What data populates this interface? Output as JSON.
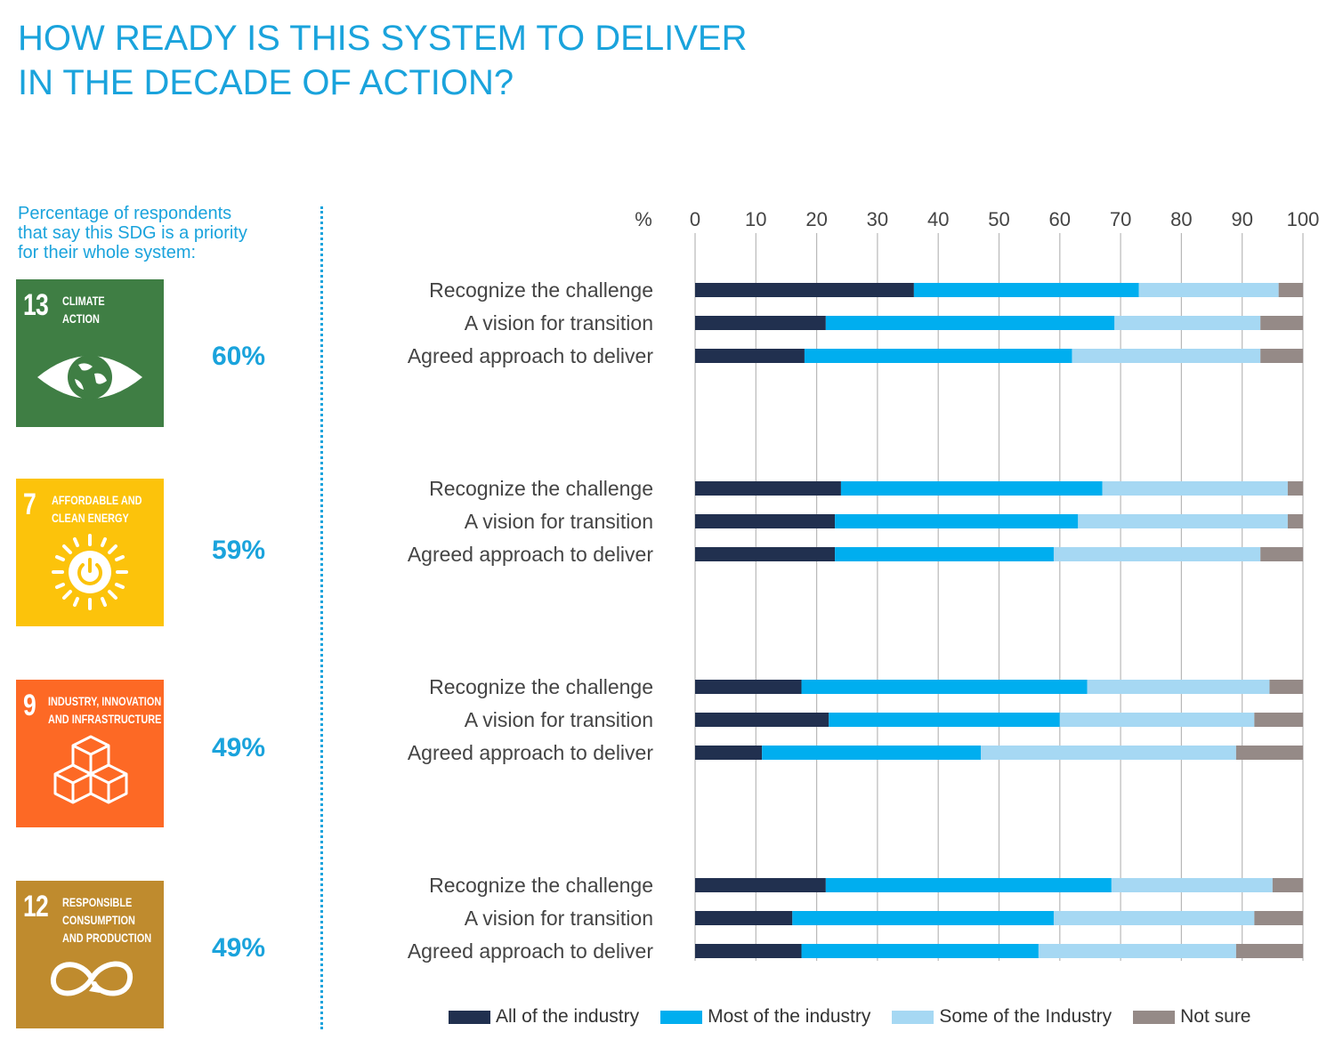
{
  "title_lines": [
    "HOW READY IS THIS SYSTEM TO DELIVER",
    "IN THE DECADE OF ACTION?"
  ],
  "intro_lines": [
    "Percentage of respondents",
    "that say this SDG is a priority",
    "for their whole system:"
  ],
  "colors": {
    "accent": "#1aa3dc",
    "all": "#21304f",
    "most": "#00aeef",
    "some": "#a6d8f3",
    "notsure": "#958a87",
    "grid": "#b8b8b8"
  },
  "sdgs": [
    {
      "number": "13",
      "name_lines": [
        "CLIMATE",
        "ACTION"
      ],
      "color": "#3f7e44",
      "icon": "eye-globe-icon",
      "priority": "60%"
    },
    {
      "number": "7",
      "name_lines": [
        "AFFORDABLE AND",
        "CLEAN ENERGY"
      ],
      "color": "#fcc30b",
      "icon": "sun-power-icon",
      "priority": "59%"
    },
    {
      "number": "9",
      "name_lines": [
        "INDUSTRY, INNOVATION",
        "AND INFRASTRUCTURE"
      ],
      "color": "#fd6925",
      "icon": "stacked-cubes-icon",
      "priority": "49%"
    },
    {
      "number": "12",
      "name_lines": [
        "RESPONSIBLE",
        "CONSUMPTION",
        "AND PRODUCTION"
      ],
      "color": "#bf8b2e",
      "icon": "infinity-loop-icon",
      "priority": "49%"
    }
  ],
  "chart_data": {
    "type": "bar",
    "orientation": "horizontal",
    "stacked": true,
    "xlabel": "%",
    "xlim": [
      0,
      100
    ],
    "xticks": [
      0,
      10,
      20,
      30,
      40,
      50,
      60,
      70,
      80,
      90,
      100
    ],
    "grid": true,
    "legend_position": "bottom-right",
    "series_names": [
      "All of the industry",
      "Most of the industry",
      "Some of the Industry",
      "Not sure"
    ],
    "groups": [
      {
        "sdg": "13 Climate Action",
        "rows": [
          {
            "label": "Recognize the challenge",
            "values": [
              36,
              37,
              23,
              4
            ]
          },
          {
            "label": "A vision for transition",
            "values": [
              21.5,
              47.5,
              24,
              7
            ]
          },
          {
            "label": "Agreed approach to deliver",
            "values": [
              18,
              44,
              31,
              7
            ]
          }
        ]
      },
      {
        "sdg": "7 Affordable and Clean Energy",
        "rows": [
          {
            "label": "Recognize the challenge",
            "values": [
              24,
              43,
              30.5,
              2.5
            ]
          },
          {
            "label": "A vision for transition",
            "values": [
              23,
              40,
              34.5,
              2.5
            ]
          },
          {
            "label": "Agreed approach to deliver",
            "values": [
              23,
              36,
              34,
              7
            ]
          }
        ]
      },
      {
        "sdg": "9 Industry, Innovation and Infrastructure",
        "rows": [
          {
            "label": "Recognize the challenge",
            "values": [
              17.5,
              47,
              30,
              5.5
            ]
          },
          {
            "label": "A vision for transition",
            "values": [
              22,
              38,
              32,
              8
            ]
          },
          {
            "label": "Agreed approach to deliver",
            "values": [
              11,
              36,
              42,
              11
            ]
          }
        ]
      },
      {
        "sdg": "12 Responsible Consumption and Production",
        "rows": [
          {
            "label": "Recognize the challenge",
            "values": [
              21.5,
              47,
              26.5,
              5
            ]
          },
          {
            "label": "A vision for transition",
            "values": [
              16,
              43,
              33,
              8
            ]
          },
          {
            "label": "Agreed approach to deliver",
            "values": [
              17.5,
              39,
              32.5,
              11
            ]
          }
        ]
      }
    ]
  }
}
